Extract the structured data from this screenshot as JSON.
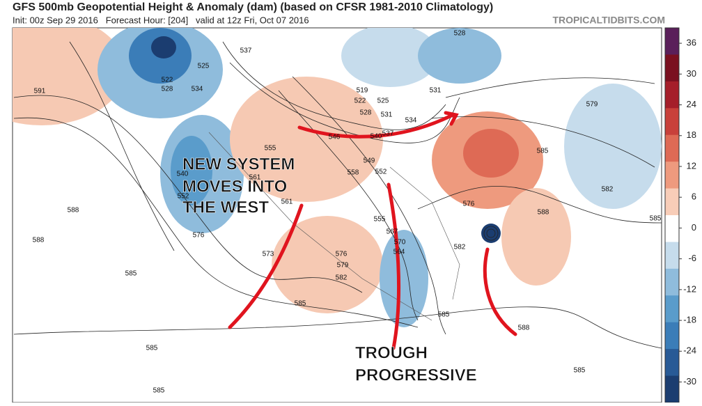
{
  "header": {
    "title": "GFS 500mb Geopotential Height & Anomaly (dam) (based on CFSR 1981-2010 Climatology)",
    "subtitle": "Init: 00z Sep 29 2016   Forecast Hour: [204]   valid at 12z Fri, Oct 07 2016",
    "site": "TROPICALTIDBITS.COM"
  },
  "annotations": {
    "west": [
      "NEW SYSTEM",
      "MOVES INTO",
      "THE WEST"
    ],
    "trough": [
      "TROUGH",
      "PROGRESSIVE"
    ]
  },
  "colorbar": {
    "range": [
      -34,
      39
    ],
    "ticks": [
      36,
      30,
      24,
      18,
      12,
      6,
      0,
      -6,
      -12,
      -18,
      -24,
      -30
    ],
    "colors": [
      "#5a1f5a",
      "#7a1020",
      "#a51e2a",
      "#c8403a",
      "#de6a55",
      "#ee9a7e",
      "#f8cdb8",
      "#ffffff",
      "#c6dcec",
      "#8fbcdc",
      "#5a9ccb",
      "#3b7db8",
      "#285a96",
      "#1b3d70"
    ]
  },
  "contour_labels": [
    591,
    525,
    522,
    528,
    534,
    537,
    588,
    588,
    585,
    585,
    585,
    540,
    552,
    576,
    555,
    561,
    561,
    573,
    576,
    579,
    582,
    585,
    585,
    519,
    522,
    525,
    528,
    531,
    534,
    537,
    540,
    546,
    549,
    552,
    558,
    555,
    567,
    570,
    564,
    582,
    576,
    579,
    585,
    582,
    588,
    585,
    588,
    585,
    528,
    531
  ]
}
